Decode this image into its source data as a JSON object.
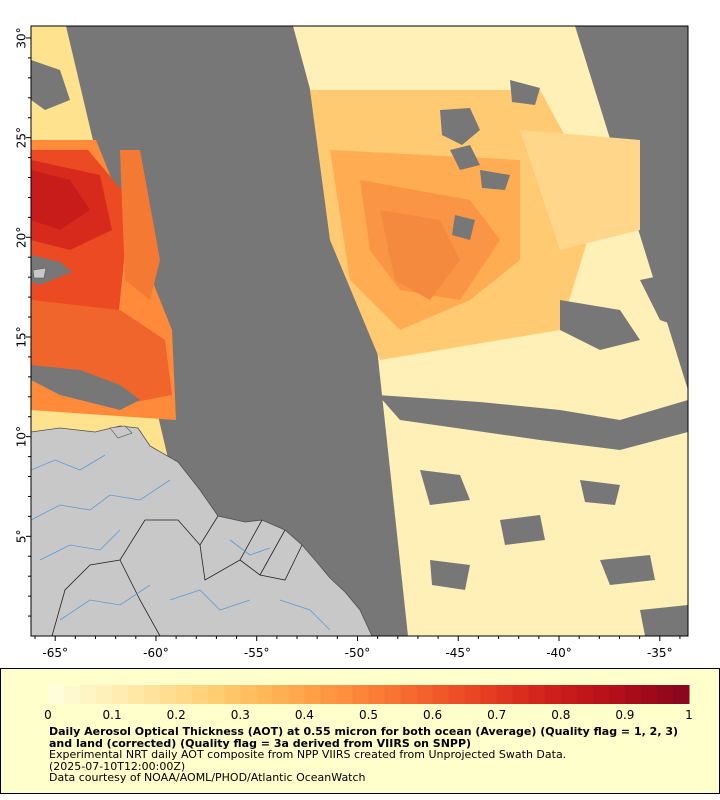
{
  "map": {
    "colors": {
      "nodata": "#777777",
      "land": "#c8c8c8",
      "coast": "#505050",
      "river": "#5b9bd5",
      "frame": "#000000"
    },
    "x_axis": {
      "labels": [
        "-65°",
        "-60°",
        "-55°",
        "-50°",
        "-45°",
        "-40°",
        "-35°"
      ],
      "values": [
        -65,
        -60,
        -55,
        -50,
        -45,
        -40,
        -35
      ],
      "range": [
        -66.2,
        -33.6
      ]
    },
    "y_axis": {
      "labels": [
        "30°",
        "25°",
        "20°",
        "15°",
        "10°",
        "5°"
      ],
      "values": [
        30,
        25,
        20,
        15,
        10,
        5
      ],
      "range": [
        0.0,
        30.6
      ]
    }
  },
  "colorbar": {
    "min": 0,
    "max": 1,
    "tick_labels": [
      "0",
      "0.1",
      "0.2",
      "0.3",
      "0.4",
      "0.5",
      "0.6",
      "0.7",
      "0.8",
      "0.9",
      "1"
    ],
    "colors": [
      "#ffffe0",
      "#fff4c2",
      "#ffe9a8",
      "#ffdc8c",
      "#ffcc70",
      "#ffb95a",
      "#ffa44a",
      "#ff8c3c",
      "#f97432",
      "#f25c2a",
      "#e84424",
      "#db2e1e",
      "#cb1c1a",
      "#b81118",
      "#a00a1a",
      "#86061e"
    ]
  },
  "legend": {
    "title_line1": "Daily Aerosol Optical Thickness (AOT) at 0.55 micron for both ocean (Average) (Quality flag = 1,",
    "title_line2": "2, 3) and land (corrected) (Quality flag = 3a derived from VIIRS on SNPP)",
    "line3": "Experimental NRT daily AOT composite from NPP VIIRS created from Unprojected Swath Data.",
    "line4": "(2025-07-10T12:00:00Z)",
    "line5": "Data courtesy of NOAA/AOML/PHOD/Atlantic OceanWatch"
  }
}
